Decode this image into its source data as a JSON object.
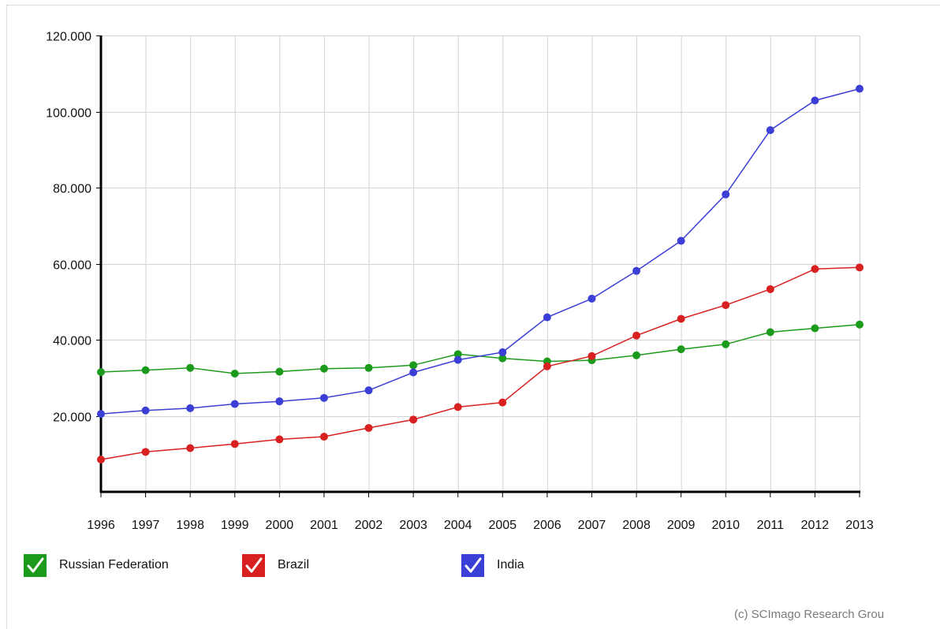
{
  "chart_data": {
    "type": "line",
    "title": "",
    "xlabel": "",
    "ylabel": "",
    "x": [
      "1996",
      "1997",
      "1998",
      "1999",
      "2000",
      "2001",
      "2002",
      "2003",
      "2004",
      "2005",
      "2006",
      "2007",
      "2008",
      "2009",
      "2010",
      "2011",
      "2012",
      "2013"
    ],
    "ylim": [
      0,
      120000
    ],
    "y_ticks": [
      20000,
      40000,
      60000,
      80000,
      100000,
      120000
    ],
    "y_tick_labels": [
      "20.000",
      "40.000",
      "60.000",
      "80.000",
      "100.000",
      "120.000"
    ],
    "grid": true,
    "legend_position": "bottom-left",
    "series": [
      {
        "name": "Russian Federation",
        "color": "#1c9a1c",
        "values": [
          31500,
          32000,
          32600,
          31100,
          31600,
          32400,
          32600,
          33300,
          36200,
          35100,
          34300,
          34600,
          35900,
          37500,
          38800,
          42000,
          43000,
          44000
        ]
      },
      {
        "name": "Brazil",
        "color": "#d92020",
        "values": [
          8500,
          10500,
          11500,
          12600,
          13800,
          14500,
          16800,
          19000,
          22300,
          23500,
          33000,
          35700,
          41100,
          45500,
          49100,
          53300,
          58600,
          59000
        ]
      },
      {
        "name": "India",
        "color": "#3b3fd6",
        "values": [
          20500,
          21400,
          22000,
          23100,
          23800,
          24700,
          26700,
          31400,
          34700,
          36700,
          45900,
          50800,
          58100,
          66000,
          78200,
          95100,
          102900,
          106000
        ]
      }
    ]
  },
  "legend": {
    "items": [
      {
        "label": "Russian Federation",
        "color": "#1c9a1c",
        "checked": true
      },
      {
        "label": "Brazil",
        "color": "#d92020",
        "checked": true
      },
      {
        "label": "India",
        "color": "#3b3fd6",
        "checked": true
      }
    ]
  },
  "footer": {
    "copyright": "(c) SCImago Research Grou"
  }
}
